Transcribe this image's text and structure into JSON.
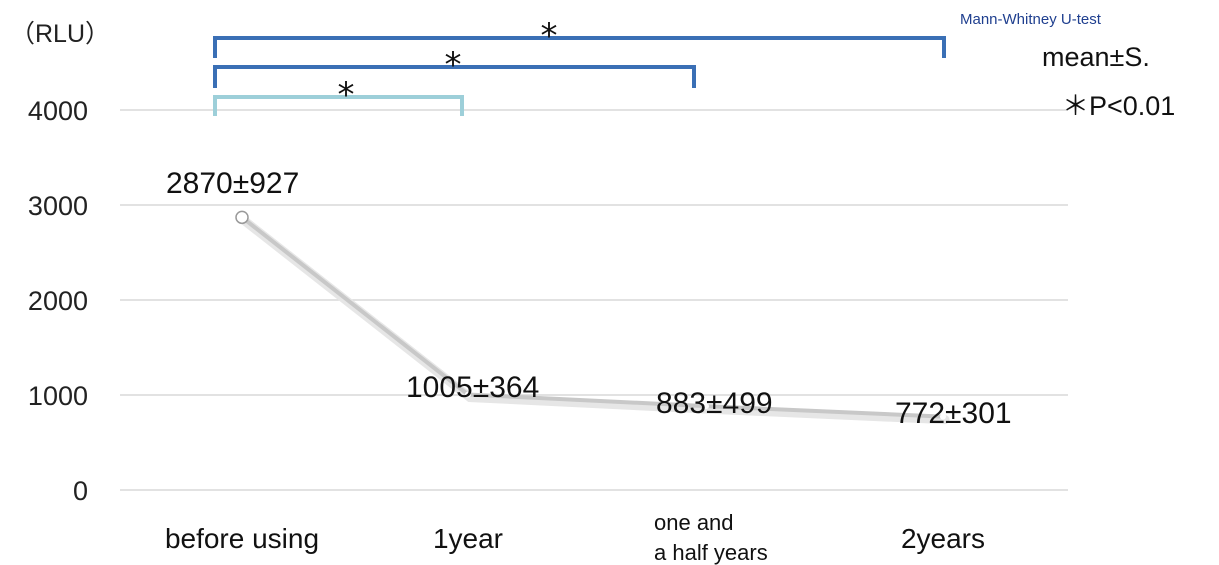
{
  "chart_data": {
    "type": "line",
    "ylabel": "（RLU）",
    "ylim": [
      0,
      4000
    ],
    "yticks": [
      "0",
      "1000",
      "2000",
      "3000",
      "4000"
    ],
    "categories": [
      {
        "lines": [
          "before using"
        ]
      },
      {
        "lines": [
          "1year"
        ]
      },
      {
        "lines": [
          "one and",
          "a half years"
        ]
      },
      {
        "lines": [
          "2years"
        ]
      }
    ],
    "values": [
      2870,
      1005,
      883,
      772
    ],
    "data_labels": [
      "2870±927",
      "1005±364",
      "883±499",
      "772±301"
    ],
    "grid": true,
    "line_color": "#c8c8c8",
    "significance": [
      {
        "from": 0,
        "to": 3,
        "label": "*",
        "color": "#3a6fb5"
      },
      {
        "from": 0,
        "to": 2,
        "label": "*",
        "color": "#3a6fb5"
      },
      {
        "from": 0,
        "to": 1,
        "label": "*",
        "color": "#9dcfd9"
      }
    ],
    "notes": {
      "test": "Mann-Whitney U-test",
      "stat": "mean±S.",
      "pvalue": "＊P<0.01"
    }
  }
}
